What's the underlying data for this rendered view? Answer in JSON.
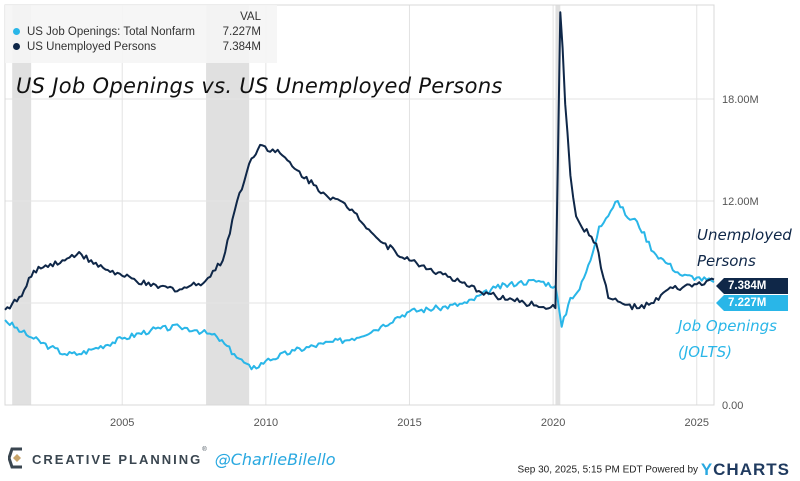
{
  "chart_data": {
    "type": "line",
    "title": "US Job Openings vs. US Unemployed Persons",
    "xlim": [
      2000.92,
      2025.6
    ],
    "ylim": [
      0,
      23.5
    ],
    "x_ticks": [
      2005,
      2010,
      2015,
      2020,
      2025
    ],
    "x_tick_labels": [
      "2005",
      "2010",
      "2015",
      "2020",
      "2025"
    ],
    "y_ticks": [
      0,
      12,
      18
    ],
    "y_tick_labels": [
      "0.00",
      "12.00M",
      "18.00M"
    ],
    "y_gridlines": [
      0,
      6,
      12,
      18
    ],
    "grid": true,
    "legend_position": "top-left",
    "legend_header": "VAL",
    "recessions": [
      [
        2001.17,
        2001.83
      ],
      [
        2007.92,
        2009.42
      ],
      [
        2020.08,
        2020.25
      ]
    ],
    "series": [
      {
        "name": "US Job Openings: Total Nonfarm",
        "color": "#29b6e8",
        "last_value_label": "7.227M",
        "annotation": [
          "Job Openings",
          "(JOLTS)"
        ],
        "x": [
          2000.92,
          2001.5,
          2001.92,
          2002.5,
          2003.0,
          2003.5,
          2004.0,
          2005.0,
          2006.0,
          2007.0,
          2007.6,
          2008.3,
          2008.9,
          2009.5,
          2010.0,
          2011.0,
          2012.0,
          2013.0,
          2014.0,
          2014.5,
          2015.0,
          2016.0,
          2017.0,
          2018.0,
          2018.8,
          2019.5,
          2020.08,
          2020.3,
          2020.6,
          2020.92,
          2021.3,
          2021.6,
          2022.0,
          2022.25,
          2022.6,
          2022.92,
          2023.5,
          2024.0,
          2024.5,
          2025.0,
          2025.6
        ],
        "y": [
          5.0,
          4.3,
          3.9,
          3.4,
          3.0,
          3.0,
          3.3,
          3.9,
          4.4,
          4.6,
          4.4,
          4.0,
          3.0,
          2.1,
          2.6,
          3.2,
          3.6,
          3.9,
          4.6,
          5.1,
          5.5,
          5.7,
          6.0,
          6.9,
          7.2,
          7.3,
          7.0,
          4.6,
          6.3,
          6.8,
          8.5,
          10.5,
          11.4,
          12.0,
          11.0,
          10.8,
          9.0,
          8.3,
          7.6,
          7.5,
          7.227
        ]
      },
      {
        "name": "US Unemployed Persons",
        "color": "#0f2748",
        "last_value_label": "7.384M",
        "annotation": [
          "Unemployed",
          "Persons"
        ],
        "x": [
          2000.92,
          2001.5,
          2001.92,
          2002.5,
          2003.0,
          2003.5,
          2004.0,
          2005.0,
          2006.0,
          2007.0,
          2007.9,
          2008.5,
          2009.0,
          2009.5,
          2009.8,
          2010.5,
          2011.0,
          2012.0,
          2013.0,
          2014.0,
          2015.0,
          2016.0,
          2017.0,
          2018.0,
          2019.0,
          2020.08,
          2020.25,
          2020.33,
          2020.42,
          2020.5,
          2020.6,
          2020.8,
          2020.92,
          2021.5,
          2021.92,
          2022.5,
          2023.0,
          2023.5,
          2024.0,
          2024.5,
          2025.0,
          2025.6
        ],
        "y": [
          5.6,
          6.4,
          7.9,
          8.3,
          8.5,
          9.0,
          8.3,
          7.6,
          7.0,
          6.8,
          7.3,
          8.5,
          12.0,
          14.5,
          15.3,
          14.8,
          13.9,
          12.5,
          11.5,
          9.6,
          8.5,
          7.8,
          7.0,
          6.4,
          6.0,
          5.7,
          23.1,
          21.0,
          17.7,
          16.0,
          13.5,
          11.1,
          10.7,
          9.5,
          6.3,
          5.9,
          5.7,
          6.0,
          6.8,
          6.9,
          7.1,
          7.384
        ]
      }
    ]
  },
  "legend": {
    "header": "VAL"
  },
  "footer": {
    "brand": "CREATIVE PLANNING",
    "handle": "@CharlieBilello",
    "timestamp": "Sep 30, 2025, 5:15 PM EDT Powered by",
    "provider_logo": "YCHARTS"
  }
}
